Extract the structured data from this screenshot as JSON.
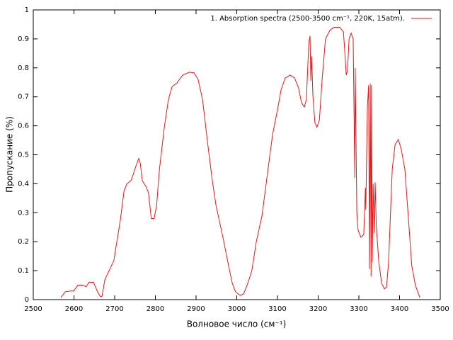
{
  "chart_data": {
    "type": "line",
    "xlabel": "Волновое число (см⁻¹)",
    "ylabel": "Пропускание (%)",
    "xlim": [
      2500,
      3500
    ],
    "ylim": [
      0,
      1
    ],
    "xticks": [
      2500,
      2600,
      2700,
      2800,
      2900,
      3000,
      3100,
      3200,
      3300,
      3400,
      3500
    ],
    "yticks": [
      0,
      0.1,
      0.2,
      0.3,
      0.4,
      0.5,
      0.6,
      0.7,
      0.8,
      0.9,
      1
    ],
    "legend": "upper right",
    "x": [
      2568,
      2578,
      2592,
      2599,
      2610,
      2620,
      2630,
      2637,
      2648,
      2657,
      2665,
      2669,
      2676,
      2688,
      2698,
      2703,
      2714,
      2723,
      2730,
      2740,
      2745,
      2752,
      2759,
      2763,
      2768,
      2777,
      2783,
      2790,
      2797,
      2803,
      2810,
      2822,
      2832,
      2841,
      2853,
      2867,
      2884,
      2895,
      2905,
      2916,
      2928,
      2940,
      2949,
      2966,
      2978,
      2989,
      2997,
      3008,
      3017,
      3027,
      3037,
      3048,
      3062,
      3074,
      3088,
      3100,
      3109,
      3119,
      3131,
      3142,
      3152,
      3159,
      3166,
      3171,
      3177,
      3180,
      3182,
      3184,
      3187,
      3192,
      3197,
      3203,
      3210,
      3218,
      3229,
      3239,
      3253,
      3262,
      3265,
      3269,
      3272,
      3276,
      3281,
      3286,
      3290,
      3291,
      3295,
      3298,
      3305,
      3312,
      3316,
      3317,
      3321,
      3324,
      3326,
      3328,
      3330,
      3331,
      3333,
      3335,
      3338,
      3340,
      3343,
      3349,
      3356,
      3363,
      3368,
      3373,
      3382,
      3389,
      3397,
      3404,
      3413,
      3422,
      3430,
      3439,
      3450
    ],
    "series": [
      {
        "name": "1. Absorption spectra (2500-3500 cm⁻¹, 220K, 15atm).",
        "color": "#e31a1c",
        "values": [
          0.007,
          0.027,
          0.03,
          0.03,
          0.05,
          0.05,
          0.045,
          0.06,
          0.06,
          0.03,
          0.01,
          0.012,
          0.07,
          0.105,
          0.135,
          0.18,
          0.275,
          0.375,
          0.4,
          0.41,
          0.43,
          0.46,
          0.487,
          0.47,
          0.41,
          0.39,
          0.37,
          0.28,
          0.28,
          0.325,
          0.45,
          0.595,
          0.69,
          0.735,
          0.748,
          0.775,
          0.785,
          0.783,
          0.76,
          0.69,
          0.545,
          0.41,
          0.325,
          0.215,
          0.13,
          0.056,
          0.027,
          0.015,
          0.02,
          0.056,
          0.1,
          0.2,
          0.29,
          0.42,
          0.57,
          0.655,
          0.725,
          0.765,
          0.775,
          0.765,
          0.73,
          0.68,
          0.665,
          0.69,
          0.885,
          0.91,
          0.755,
          0.84,
          0.705,
          0.61,
          0.595,
          0.62,
          0.765,
          0.9,
          0.93,
          0.94,
          0.94,
          0.925,
          0.865,
          0.775,
          0.79,
          0.9,
          0.92,
          0.9,
          0.42,
          0.8,
          0.3,
          0.24,
          0.215,
          0.225,
          0.385,
          0.31,
          0.665,
          0.74,
          0.105,
          0.745,
          0.08,
          0.74,
          0.13,
          0.4,
          0.23,
          0.405,
          0.25,
          0.13,
          0.056,
          0.037,
          0.044,
          0.13,
          0.45,
          0.535,
          0.553,
          0.52,
          0.45,
          0.275,
          0.117,
          0.049,
          0.007
        ]
      }
    ]
  }
}
